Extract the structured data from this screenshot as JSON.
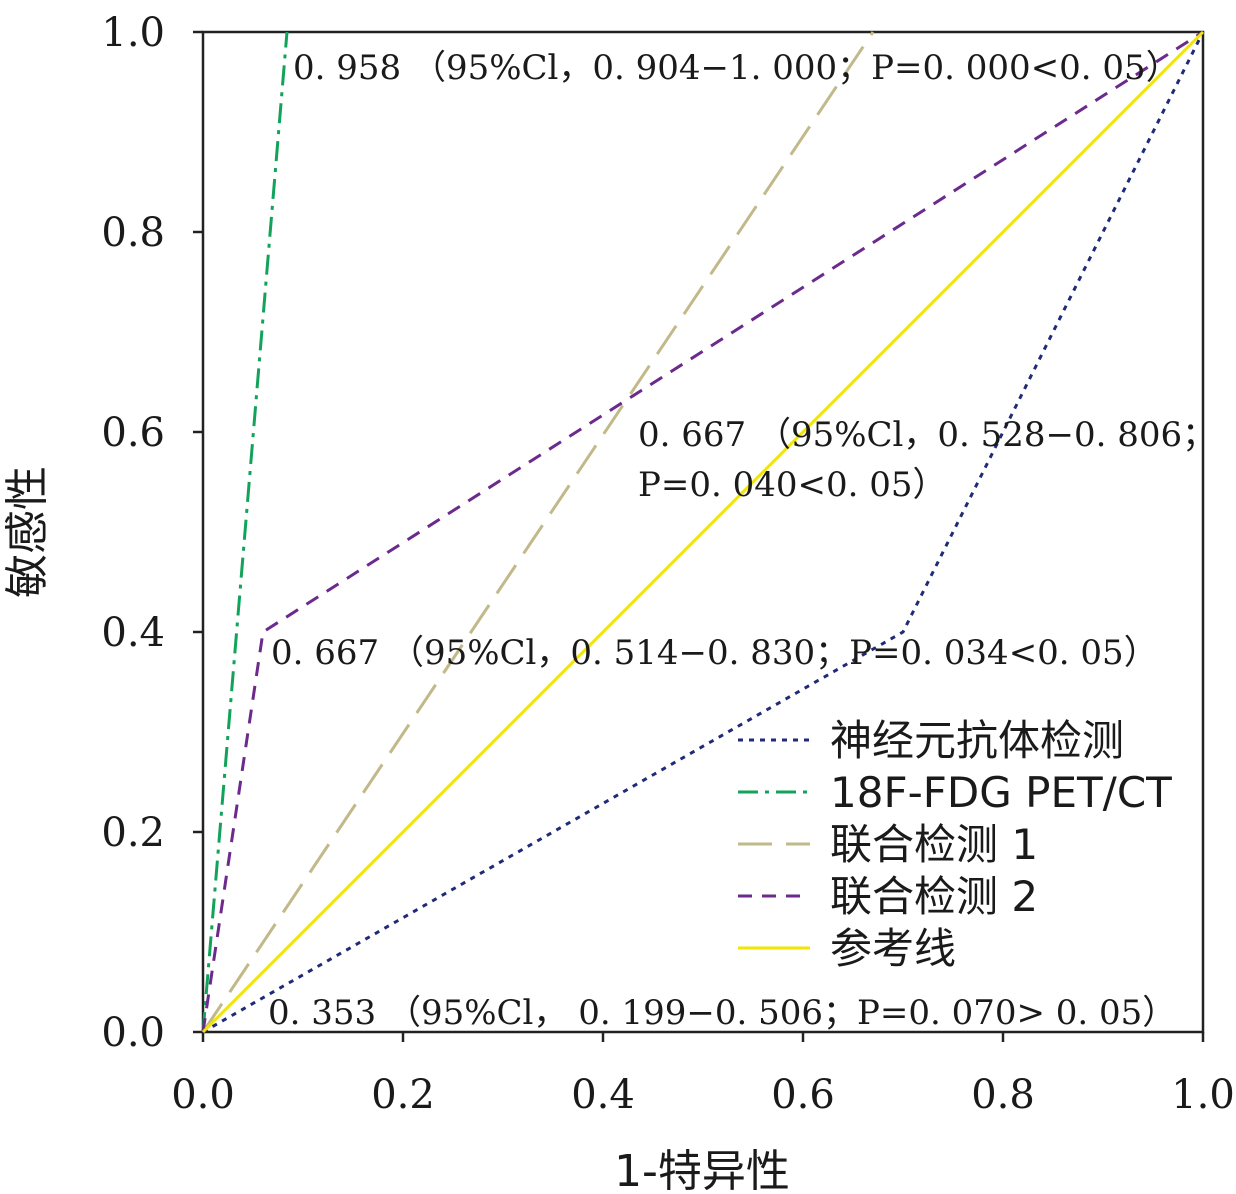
{
  "chart_data": {
    "type": "line",
    "title": "",
    "xlabel": "1-特异性",
    "ylabel": "敏感性",
    "xlim": [
      0,
      1
    ],
    "ylim": [
      0,
      1
    ],
    "x_ticks": [
      "0.0",
      "0.2",
      "0.4",
      "0.6",
      "0.8",
      "1.0"
    ],
    "y_ticks": [
      "0.0",
      "0.2",
      "0.4",
      "0.6",
      "0.8",
      "1.0"
    ],
    "grid": false,
    "legend_position": "bottom-right",
    "series": [
      {
        "name": "神经元抗体检测",
        "color": "#1f2a78",
        "style": "dotted",
        "points": [
          [
            0,
            0
          ],
          [
            0.7,
            0.4
          ],
          [
            1,
            1
          ]
        ]
      },
      {
        "name": "18F-FDG PET/CT",
        "color": "#12a35a",
        "style": "dashdot",
        "points": [
          [
            0,
            0
          ],
          [
            0.084,
            1.0
          ]
        ]
      },
      {
        "name": "联合检测 1",
        "color": "#c2b98a",
        "style": "longdash",
        "points": [
          [
            0,
            0
          ],
          [
            0.67,
            1.0
          ]
        ]
      },
      {
        "name": "联合检测 2",
        "color": "#6b2a8c",
        "style": "dashed",
        "points": [
          [
            0,
            0
          ],
          [
            0.06,
            0.4
          ],
          [
            1,
            1
          ]
        ]
      },
      {
        "name": "参考线",
        "color": "#f2e600",
        "style": "solid",
        "points": [
          [
            0,
            0
          ],
          [
            1,
            1
          ]
        ]
      }
    ],
    "annotations": [
      {
        "lines": [
          "0. 958 （95%Cl，0. 904−1. 000；P=0. 000<0. 05）"
        ],
        "x": 0.09,
        "y": 0.965
      },
      {
        "lines": [
          "0. 667 （95%Cl，0. 528−0. 806；",
          "P=0. 040<0. 05）"
        ],
        "x": 0.435,
        "y": 0.598
      },
      {
        "lines": [
          "0. 667 （95%Cl，0. 514−0. 830；P=0. 034<0. 05）"
        ],
        "x": 0.068,
        "y": 0.38
      },
      {
        "lines": [
          "0. 353 （95%Cl， 0. 199−0. 506；P=0. 070> 0. 05）"
        ],
        "x": 0.065,
        "y": 0.02
      }
    ]
  }
}
